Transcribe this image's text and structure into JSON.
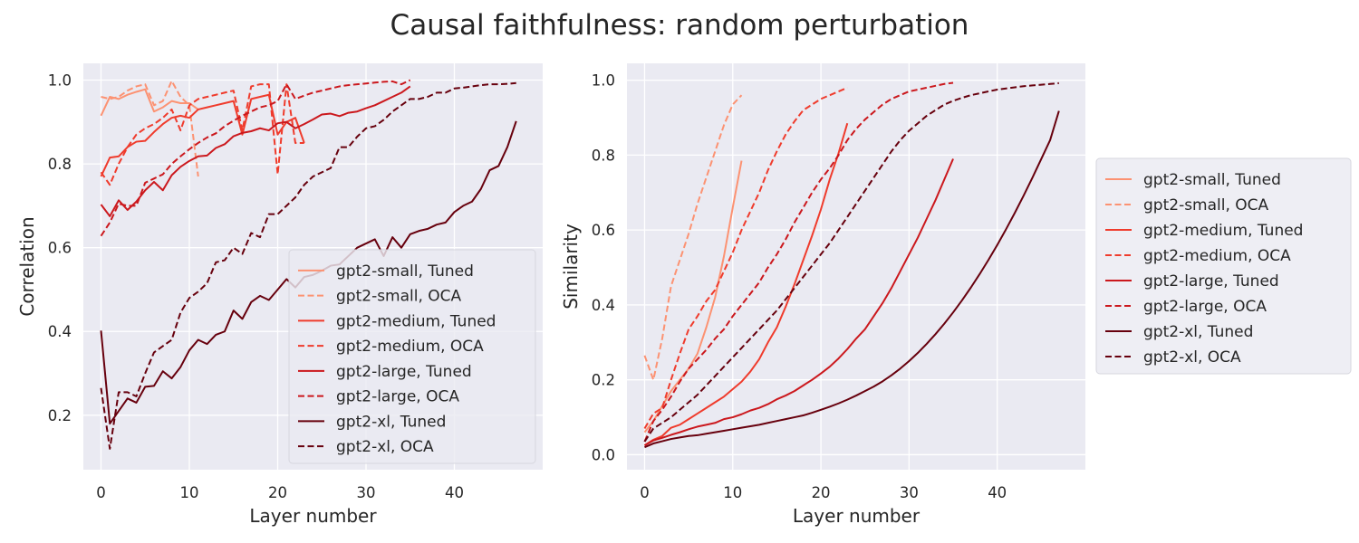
{
  "title": "Causal faithfulness: random perturbation",
  "colors": {
    "background": "#eaeaf2",
    "grid": "#ffffff",
    "small": "#fc9272",
    "medium": "#ef3b2c",
    "large": "#cb181d",
    "xl": "#67000d"
  },
  "chart_data": [
    {
      "type": "line",
      "xlabel": "Layer number",
      "ylabel": "Correlation",
      "xlim": [
        -2,
        50
      ],
      "ylim": [
        0.07,
        1.04
      ],
      "xticks": [
        0,
        10,
        20,
        30,
        40
      ],
      "yticks": [
        0.2,
        0.4,
        0.6,
        0.8,
        1.0
      ],
      "grid": true,
      "legend_placement": "lower-right",
      "series": [
        {
          "name": "gpt2-small, Tuned",
          "model": "small",
          "style": "solid",
          "y": [
            0.915,
            0.96,
            0.955,
            0.965,
            0.972,
            0.978,
            0.925,
            0.935,
            0.95,
            0.945,
            0.945,
            0.93
          ]
        },
        {
          "name": "gpt2-small, OCA",
          "model": "small",
          "style": "dashed",
          "y": [
            0.96,
            0.955,
            0.96,
            0.975,
            0.985,
            0.99,
            0.94,
            0.95,
            0.998,
            0.96,
            0.94,
            0.77
          ]
        },
        {
          "name": "gpt2-medium, Tuned",
          "model": "medium",
          "style": "solid",
          "y": [
            0.77,
            0.815,
            0.818,
            0.84,
            0.853,
            0.855,
            0.876,
            0.895,
            0.91,
            0.915,
            0.91,
            0.93,
            0.935,
            0.94,
            0.945,
            0.95,
            0.87,
            0.955,
            0.96,
            0.965,
            0.87,
            0.9,
            0.91,
            0.85
          ]
        },
        {
          "name": "gpt2-medium, OCA",
          "model": "medium",
          "style": "dashed",
          "y": [
            0.78,
            0.75,
            0.8,
            0.84,
            0.87,
            0.885,
            0.895,
            0.91,
            0.93,
            0.88,
            0.94,
            0.955,
            0.96,
            0.965,
            0.97,
            0.975,
            0.88,
            0.985,
            0.99,
            0.99,
            0.775,
            0.99,
            0.85,
            0.85
          ]
        },
        {
          "name": "gpt2-large, Tuned",
          "model": "large",
          "style": "solid",
          "y": [
            0.703,
            0.675,
            0.713,
            0.69,
            0.71,
            0.737,
            0.757,
            0.737,
            0.773,
            0.793,
            0.807,
            0.818,
            0.82,
            0.838,
            0.847,
            0.866,
            0.874,
            0.878,
            0.885,
            0.88,
            0.897,
            0.9,
            0.885,
            0.895,
            0.906,
            0.918,
            0.92,
            0.914,
            0.922,
            0.925,
            0.933,
            0.94,
            0.95,
            0.96,
            0.97,
            0.985
          ]
        },
        {
          "name": "gpt2-large, OCA",
          "model": "large",
          "style": "dashed",
          "y": [
            0.628,
            0.66,
            0.705,
            0.7,
            0.7,
            0.755,
            0.765,
            0.775,
            0.8,
            0.818,
            0.835,
            0.85,
            0.863,
            0.873,
            0.89,
            0.903,
            0.915,
            0.925,
            0.935,
            0.94,
            0.95,
            0.99,
            0.955,
            0.963,
            0.97,
            0.975,
            0.98,
            0.985,
            0.988,
            0.99,
            0.992,
            0.994,
            0.996,
            0.997,
            0.99,
            1.0
          ]
        },
        {
          "name": "gpt2-xl, Tuned",
          "model": "xl",
          "style": "solid",
          "y": [
            0.402,
            0.18,
            0.21,
            0.24,
            0.23,
            0.268,
            0.27,
            0.305,
            0.288,
            0.315,
            0.355,
            0.38,
            0.37,
            0.392,
            0.4,
            0.45,
            0.43,
            0.47,
            0.485,
            0.475,
            0.5,
            0.525,
            0.505,
            0.53,
            0.535,
            0.545,
            0.557,
            0.56,
            0.58,
            0.6,
            0.61,
            0.62,
            0.58,
            0.625,
            0.6,
            0.632,
            0.64,
            0.645,
            0.655,
            0.66,
            0.685,
            0.7,
            0.71,
            0.74,
            0.785,
            0.795,
            0.84,
            0.902
          ]
        },
        {
          "name": "gpt2-xl, OCA",
          "model": "xl",
          "style": "dashed",
          "y": [
            0.265,
            0.12,
            0.255,
            0.255,
            0.245,
            0.3,
            0.35,
            0.365,
            0.38,
            0.445,
            0.48,
            0.495,
            0.515,
            0.565,
            0.57,
            0.6,
            0.585,
            0.635,
            0.625,
            0.68,
            0.68,
            0.7,
            0.72,
            0.75,
            0.77,
            0.78,
            0.79,
            0.84,
            0.84,
            0.865,
            0.885,
            0.89,
            0.905,
            0.925,
            0.94,
            0.955,
            0.955,
            0.96,
            0.97,
            0.97,
            0.98,
            0.982,
            0.985,
            0.988,
            0.99,
            0.99,
            0.991,
            0.993
          ]
        }
      ]
    },
    {
      "type": "line",
      "xlabel": "Layer number",
      "ylabel": "Similarity",
      "xlim": [
        -2,
        50
      ],
      "ylim": [
        -0.04,
        1.045
      ],
      "xticks": [
        0,
        10,
        20,
        30,
        40
      ],
      "yticks": [
        0.0,
        0.2,
        0.4,
        0.6,
        0.8,
        1.0
      ],
      "grid": true,
      "legend_placement": "outside-right",
      "series": [
        {
          "name": "gpt2-small, Tuned",
          "model": "small",
          "style": "solid",
          "y": [
            0.06,
            0.09,
            0.13,
            0.17,
            0.2,
            0.23,
            0.27,
            0.34,
            0.42,
            0.53,
            0.66,
            0.785
          ]
        },
        {
          "name": "gpt2-small, OCA",
          "model": "small",
          "style": "dashed",
          "y": [
            0.265,
            0.2,
            0.31,
            0.45,
            0.52,
            0.59,
            0.67,
            0.74,
            0.81,
            0.88,
            0.935,
            0.96
          ]
        },
        {
          "name": "gpt2-medium, Tuned",
          "model": "medium",
          "style": "solid",
          "y": [
            0.025,
            0.04,
            0.05,
            0.072,
            0.08,
            0.095,
            0.11,
            0.125,
            0.14,
            0.155,
            0.175,
            0.195,
            0.222,
            0.255,
            0.3,
            0.34,
            0.395,
            0.455,
            0.52,
            0.585,
            0.655,
            0.735,
            0.805,
            0.885
          ]
        },
        {
          "name": "gpt2-medium, OCA",
          "model": "medium",
          "style": "dashed",
          "y": [
            0.07,
            0.11,
            0.125,
            0.2,
            0.27,
            0.335,
            0.37,
            0.41,
            0.44,
            0.49,
            0.54,
            0.6,
            0.65,
            0.7,
            0.76,
            0.81,
            0.855,
            0.89,
            0.92,
            0.935,
            0.95,
            0.96,
            0.97,
            0.98
          ]
        },
        {
          "name": "gpt2-large, Tuned",
          "model": "large",
          "style": "solid",
          "y": [
            0.025,
            0.038,
            0.045,
            0.053,
            0.06,
            0.068,
            0.075,
            0.08,
            0.085,
            0.095,
            0.1,
            0.108,
            0.118,
            0.125,
            0.135,
            0.148,
            0.158,
            0.17,
            0.185,
            0.2,
            0.217,
            0.235,
            0.257,
            0.282,
            0.31,
            0.335,
            0.37,
            0.405,
            0.445,
            0.49,
            0.535,
            0.58,
            0.63,
            0.68,
            0.735,
            0.79
          ]
        },
        {
          "name": "gpt2-large, OCA",
          "model": "large",
          "style": "dashed",
          "y": [
            0.035,
            0.09,
            0.12,
            0.155,
            0.195,
            0.23,
            0.255,
            0.28,
            0.31,
            0.335,
            0.37,
            0.4,
            0.43,
            0.46,
            0.5,
            0.535,
            0.575,
            0.62,
            0.66,
            0.7,
            0.735,
            0.765,
            0.8,
            0.84,
            0.87,
            0.895,
            0.915,
            0.935,
            0.95,
            0.96,
            0.97,
            0.975,
            0.98,
            0.985,
            0.99,
            0.993
          ]
        },
        {
          "name": "gpt2-xl, Tuned",
          "model": "xl",
          "style": "solid",
          "y": [
            0.02,
            0.03,
            0.036,
            0.042,
            0.046,
            0.05,
            0.052,
            0.056,
            0.06,
            0.064,
            0.068,
            0.072,
            0.076,
            0.08,
            0.085,
            0.09,
            0.095,
            0.1,
            0.105,
            0.112,
            0.12,
            0.128,
            0.137,
            0.147,
            0.158,
            0.17,
            0.182,
            0.196,
            0.212,
            0.23,
            0.25,
            0.272,
            0.296,
            0.322,
            0.35,
            0.38,
            0.412,
            0.446,
            0.482,
            0.52,
            0.56,
            0.602,
            0.646,
            0.692,
            0.74,
            0.79,
            0.84,
            0.918
          ]
        },
        {
          "name": "gpt2-xl, OCA",
          "model": "xl",
          "style": "dashed",
          "y": [
            0.035,
            0.07,
            0.085,
            0.1,
            0.12,
            0.14,
            0.16,
            0.185,
            0.21,
            0.235,
            0.26,
            0.285,
            0.31,
            0.335,
            0.36,
            0.385,
            0.415,
            0.445,
            0.475,
            0.505,
            0.535,
            0.565,
            0.6,
            0.635,
            0.67,
            0.705,
            0.74,
            0.775,
            0.81,
            0.84,
            0.865,
            0.885,
            0.905,
            0.92,
            0.935,
            0.945,
            0.953,
            0.96,
            0.965,
            0.97,
            0.975,
            0.978,
            0.981,
            0.984,
            0.986,
            0.988,
            0.99,
            0.992
          ]
        }
      ]
    }
  ]
}
